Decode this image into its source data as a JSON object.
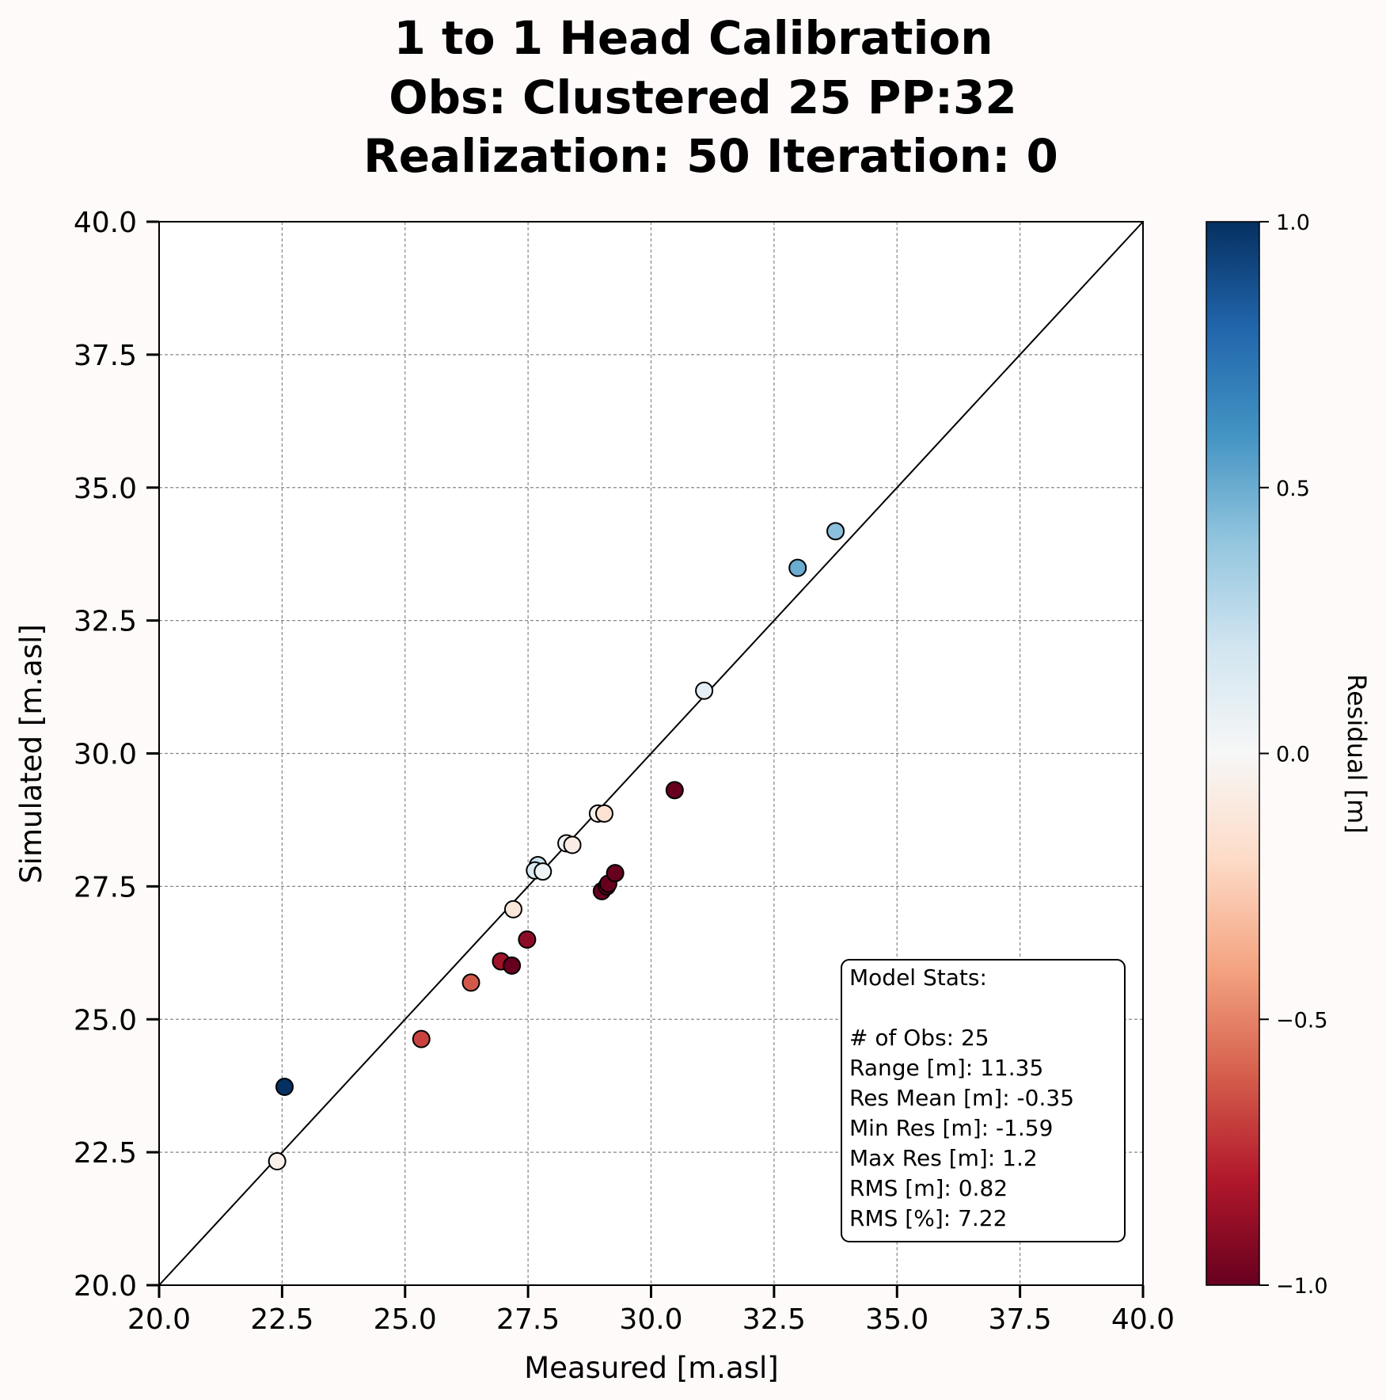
{
  "chart_data": {
    "type": "scatter",
    "title_lines": [
      "1 to 1 Head Calibration",
      "Obs: Clustered 25    PP:32",
      "Realization: 50  Iteration: 0"
    ],
    "xlabel": "Measured [m.asl]",
    "ylabel": "Simulated [m.asl]",
    "xlim": [
      20,
      40
    ],
    "ylim": [
      20,
      40
    ],
    "xticks": [
      "20.0",
      "22.5",
      "25.0",
      "27.5",
      "30.0",
      "32.5",
      "35.0",
      "37.5",
      "40.0"
    ],
    "yticks": [
      "20.0",
      "22.5",
      "25.0",
      "27.5",
      "30.0",
      "32.5",
      "35.0",
      "37.5",
      "40.0"
    ],
    "grid": true,
    "reference_line": "1:1",
    "colorbar": {
      "label": "Residual [m]",
      "range": [
        -1.0,
        1.0
      ],
      "colormap": "RdBu",
      "ticks": [
        "1.0",
        "0.5",
        "0.0",
        "−0.5",
        "−1.0"
      ]
    },
    "points": [
      {
        "x": 22.55,
        "y": 23.73,
        "residual": 1.0
      },
      {
        "x": 22.4,
        "y": 22.33,
        "residual": -0.05
      },
      {
        "x": 25.33,
        "y": 24.63,
        "residual": -0.68
      },
      {
        "x": 26.34,
        "y": 25.69,
        "residual": -0.62
      },
      {
        "x": 26.95,
        "y": 26.09,
        "residual": -0.85
      },
      {
        "x": 27.17,
        "y": 26.01,
        "residual": -1.0
      },
      {
        "x": 27.48,
        "y": 26.5,
        "residual": -0.9
      },
      {
        "x": 27.2,
        "y": 27.07,
        "residual": -0.12
      },
      {
        "x": 27.7,
        "y": 27.9,
        "residual": 0.22
      },
      {
        "x": 27.64,
        "y": 27.8,
        "residual": 0.15
      },
      {
        "x": 27.8,
        "y": 27.78,
        "residual": 0.05
      },
      {
        "x": 28.28,
        "y": 28.31,
        "residual": 0.03
      },
      {
        "x": 28.4,
        "y": 28.28,
        "residual": -0.08
      },
      {
        "x": 28.92,
        "y": 28.87,
        "residual": -0.05
      },
      {
        "x": 29.05,
        "y": 28.87,
        "residual": -0.15
      },
      {
        "x": 29.0,
        "y": 27.41,
        "residual": -1.0
      },
      {
        "x": 29.1,
        "y": 27.5,
        "residual": -1.0
      },
      {
        "x": 29.13,
        "y": 27.55,
        "residual": -1.0
      },
      {
        "x": 29.27,
        "y": 27.75,
        "residual": -1.0
      },
      {
        "x": 30.48,
        "y": 29.31,
        "residual": -1.0
      },
      {
        "x": 31.08,
        "y": 31.18,
        "residual": 0.1
      },
      {
        "x": 32.98,
        "y": 33.49,
        "residual": 0.5
      },
      {
        "x": 33.75,
        "y": 34.18,
        "residual": 0.42
      }
    ],
    "stats_box": [
      "Model Stats:",
      "",
      "# of Obs: 25",
      "Range [m]: 11.35",
      "Res Mean [m]: -0.35",
      "Min Res [m]: -1.59",
      "Max Res [m]: 1.2",
      "RMS [m]: 0.82",
      "RMS [%]: 7.22"
    ]
  }
}
